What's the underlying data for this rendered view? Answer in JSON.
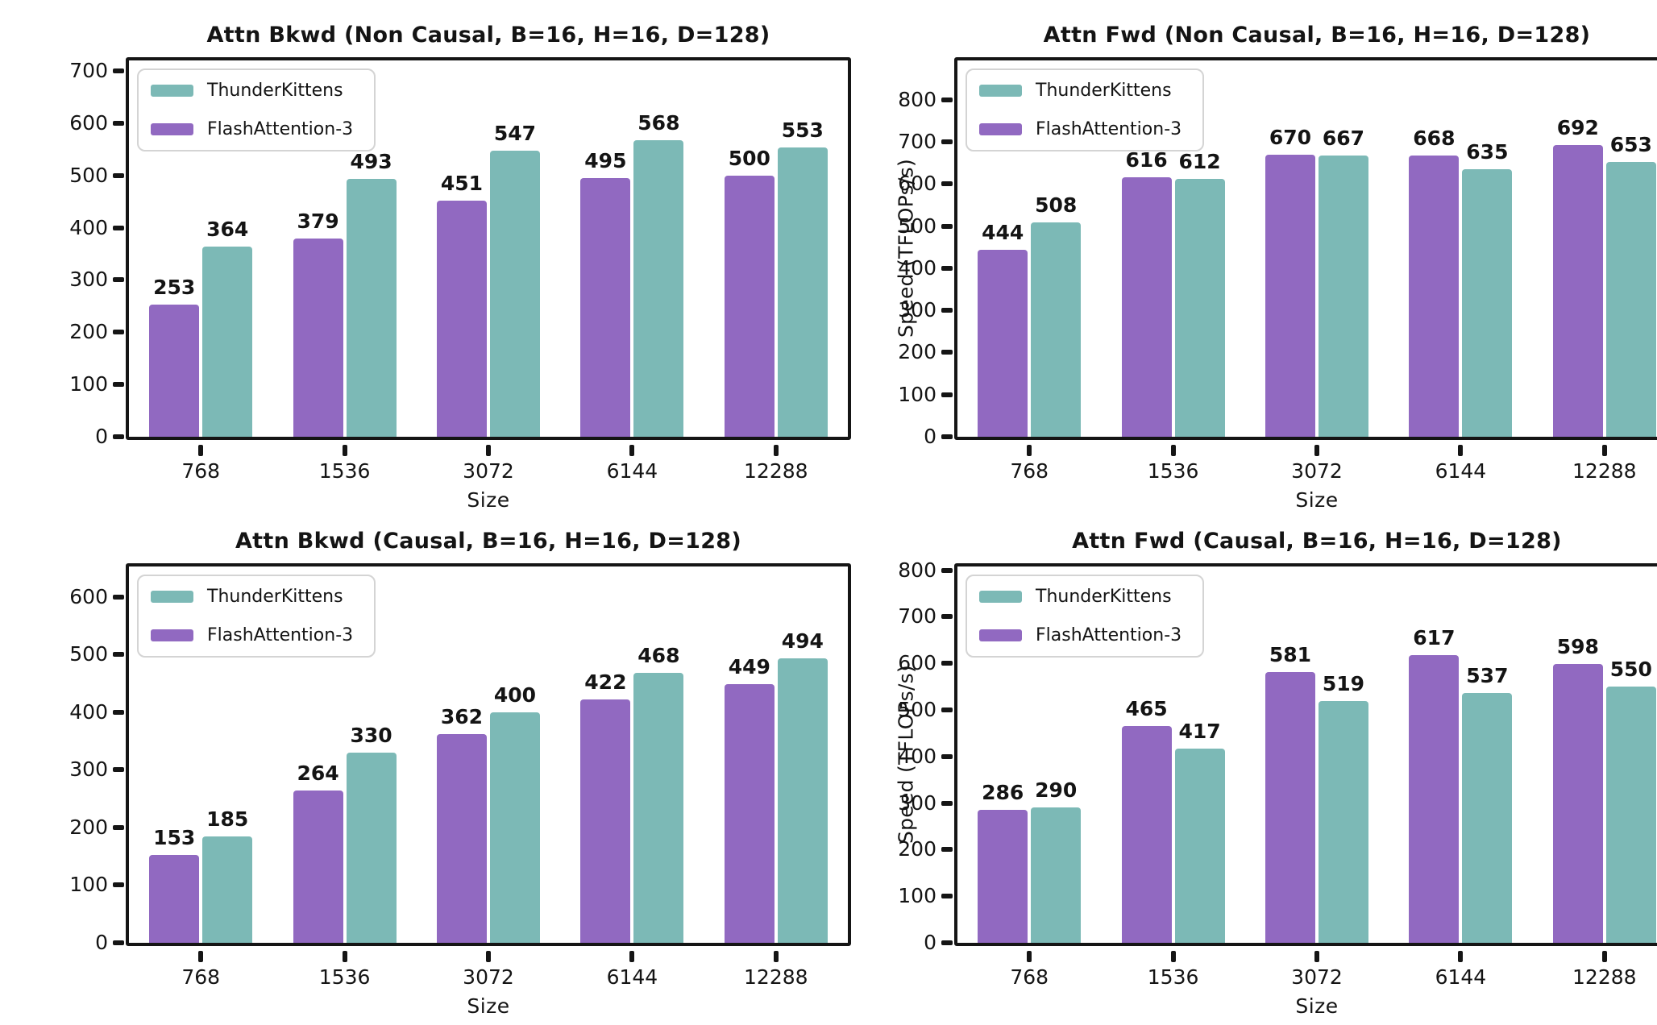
{
  "page": {
    "background": "#ffffff"
  },
  "colors": {
    "thunderkittens": "#7cb9b6",
    "flashattention3": "#9169c1",
    "axis": "#151515",
    "legend_border": "#d4d4d4",
    "text": "#141414"
  },
  "chart_data": [
    {
      "type": "bar",
      "title": "Attn Bkwd (Non Causal, B=16, H=16, D=128)",
      "xlabel": "Size",
      "ylabel": "",
      "categories": [
        "768",
        "1536",
        "3072",
        "6144",
        "12288"
      ],
      "series": [
        {
          "name": "FlashAttention-3",
          "color": "#9169c1",
          "values": [
            253,
            379,
            451,
            495,
            500
          ]
        },
        {
          "name": "ThunderKittens",
          "color": "#7cb9b6",
          "values": [
            364,
            493,
            547,
            568,
            553
          ]
        }
      ],
      "legend": [
        "ThunderKittens",
        "FlashAttention-3"
      ],
      "legend_position": "upper left",
      "grid": false,
      "ylim": [
        0,
        720
      ],
      "yticks": {
        "max": 700,
        "step": 100
      }
    },
    {
      "type": "bar",
      "title": "Attn Fwd (Non Causal, B=16, H=16, D=128)",
      "xlabel": "Size",
      "ylabel": "Speed (TFLOPs/s)",
      "categories": [
        "768",
        "1536",
        "3072",
        "6144",
        "12288"
      ],
      "series": [
        {
          "name": "FlashAttention-3",
          "color": "#9169c1",
          "values": [
            444,
            616,
            670,
            668,
            692
          ]
        },
        {
          "name": "ThunderKittens",
          "color": "#7cb9b6",
          "values": [
            508,
            612,
            667,
            635,
            653
          ]
        }
      ],
      "legend": [
        "ThunderKittens",
        "FlashAttention-3"
      ],
      "legend_position": "upper left",
      "grid": false,
      "ylim": [
        0,
        893
      ],
      "yticks": {
        "max": 800,
        "step": 100
      }
    },
    {
      "type": "bar",
      "title": "Attn Bkwd (Causal, B=16, H=16, D=128)",
      "xlabel": "Size",
      "ylabel": "",
      "categories": [
        "768",
        "1536",
        "3072",
        "6144",
        "12288"
      ],
      "series": [
        {
          "name": "FlashAttention-3",
          "color": "#9169c1",
          "values": [
            153,
            264,
            362,
            422,
            449
          ]
        },
        {
          "name": "ThunderKittens",
          "color": "#7cb9b6",
          "values": [
            185,
            330,
            400,
            468,
            494
          ]
        }
      ],
      "legend": [
        "ThunderKittens",
        "FlashAttention-3"
      ],
      "legend_position": "upper left",
      "grid": false,
      "ylim": [
        0,
        653
      ],
      "yticks": {
        "max": 600,
        "step": 100
      }
    },
    {
      "type": "bar",
      "title": "Attn Fwd (Causal, B=16, H=16, D=128)",
      "xlabel": "Size",
      "ylabel": "Speed (TFLOPs/s)",
      "categories": [
        "768",
        "1536",
        "3072",
        "6144",
        "12288"
      ],
      "series": [
        {
          "name": "FlashAttention-3",
          "color": "#9169c1",
          "values": [
            286,
            465,
            581,
            617,
            598
          ]
        },
        {
          "name": "ThunderKittens",
          "color": "#7cb9b6",
          "values": [
            290,
            417,
            519,
            537,
            550
          ]
        }
      ],
      "legend": [
        "ThunderKittens",
        "FlashAttention-3"
      ],
      "legend_position": "upper left",
      "grid": false,
      "ylim": [
        0,
        808
      ],
      "yticks": {
        "max": 800,
        "step": 100
      }
    }
  ]
}
